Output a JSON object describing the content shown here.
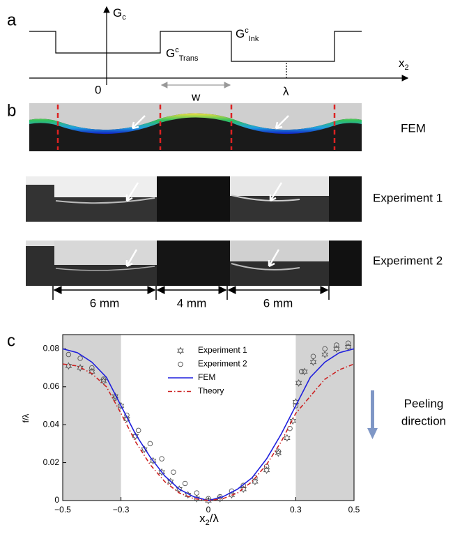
{
  "panel_labels": [
    "a",
    "b",
    "c"
  ],
  "diagram": {
    "axis_y": [
      "G",
      "c"
    ],
    "axis_x": [
      "x",
      "2"
    ],
    "origin": "0",
    "trans": [
      "G",
      "c",
      "Trans"
    ],
    "ink": [
      "G",
      "c",
      "Ink"
    ],
    "width": "w",
    "period": "λ"
  },
  "images": {
    "rows": [
      "FEM",
      "Experiment 1",
      "Experiment 2"
    ],
    "dimensions": [
      "6 mm",
      "4 mm",
      "6 mm"
    ]
  },
  "annotation": [
    "Peeling",
    "direction"
  ],
  "chart_data": {
    "type": "line",
    "xlabel": [
      "x",
      "2",
      "/λ"
    ],
    "ylabel": "f/λ",
    "xlim": [
      -0.5,
      0.5
    ],
    "ylim": [
      0,
      0.0875
    ],
    "xticks": [
      {
        "value": -0.5,
        "label": "−0.5"
      },
      {
        "value": -0.3,
        "label": "−0.3"
      },
      0,
      0.3,
      0.5
    ],
    "yticks": [
      0,
      0.02,
      0.04,
      0.06,
      0.08
    ],
    "shaded_regions": [
      [
        -0.5,
        -0.3
      ],
      [
        0.3,
        0.5
      ]
    ],
    "legend": "upper center",
    "series": [
      {
        "name": "Experiment 1",
        "marker": "star",
        "color": "#555555",
        "x": [
          -0.48,
          -0.44,
          -0.4,
          -0.36,
          -0.32,
          -0.3,
          -0.28,
          -0.25,
          -0.22,
          -0.19,
          -0.16,
          -0.13,
          -0.1,
          -0.07,
          -0.04,
          0,
          0.04,
          0.08,
          0.12,
          0.16,
          0.2,
          0.24,
          0.27,
          0.29,
          0.3,
          0.31,
          0.33,
          0.36,
          0.4,
          0.44,
          0.48
        ],
        "values": [
          0.071,
          0.07,
          0.068,
          0.063,
          0.055,
          0.05,
          0.043,
          0.034,
          0.027,
          0.021,
          0.015,
          0.01,
          0.006,
          0.003,
          0.001,
          0,
          0.001,
          0.003,
          0.006,
          0.01,
          0.016,
          0.025,
          0.033,
          0.042,
          0.052,
          0.062,
          0.068,
          0.073,
          0.077,
          0.08,
          0.081
        ]
      },
      {
        "name": "Experiment 2",
        "marker": "circle",
        "color": "#555555",
        "x": [
          -0.48,
          -0.44,
          -0.4,
          -0.36,
          -0.32,
          -0.28,
          -0.24,
          -0.2,
          -0.16,
          -0.12,
          -0.08,
          -0.04,
          0,
          0.04,
          0.08,
          0.12,
          0.16,
          0.2,
          0.24,
          0.28,
          0.3,
          0.32,
          0.36,
          0.4,
          0.44,
          0.48
        ],
        "values": [
          0.077,
          0.075,
          0.07,
          0.064,
          0.054,
          0.045,
          0.037,
          0.03,
          0.022,
          0.015,
          0.009,
          0.004,
          0.001,
          0.002,
          0.005,
          0.008,
          0.012,
          0.018,
          0.026,
          0.038,
          0.05,
          0.068,
          0.076,
          0.08,
          0.082,
          0.083
        ]
      },
      {
        "name": "FEM",
        "marker": "line",
        "color": "#1f1fdd",
        "x": [
          -0.5,
          -0.45,
          -0.4,
          -0.35,
          -0.3,
          -0.25,
          -0.2,
          -0.15,
          -0.1,
          -0.05,
          0,
          0.05,
          0.1,
          0.15,
          0.2,
          0.25,
          0.3,
          0.35,
          0.4,
          0.45,
          0.5
        ],
        "values": [
          0.08,
          0.078,
          0.073,
          0.065,
          0.05,
          0.035,
          0.023,
          0.013,
          0.006,
          0.002,
          0,
          0.002,
          0.006,
          0.012,
          0.022,
          0.035,
          0.05,
          0.065,
          0.073,
          0.078,
          0.08
        ]
      },
      {
        "name": "Theory",
        "marker": "dashdot",
        "color": "#cc2222",
        "x": [
          -0.5,
          -0.45,
          -0.4,
          -0.35,
          -0.3,
          -0.25,
          -0.2,
          -0.15,
          -0.1,
          -0.05,
          0,
          0.05,
          0.1,
          0.15,
          0.2,
          0.25,
          0.3,
          0.35,
          0.4,
          0.45,
          0.5
        ],
        "values": [
          0.072,
          0.071,
          0.067,
          0.06,
          0.046,
          0.031,
          0.019,
          0.01,
          0.004,
          0.001,
          0,
          0.001,
          0.004,
          0.01,
          0.019,
          0.031,
          0.046,
          0.055,
          0.064,
          0.069,
          0.072
        ]
      }
    ]
  }
}
